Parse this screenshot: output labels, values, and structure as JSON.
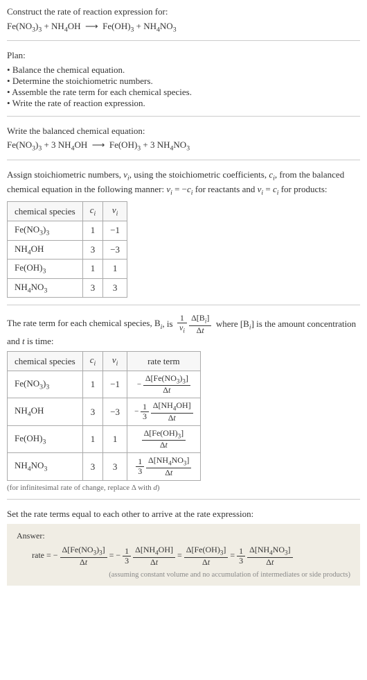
{
  "prompt": {
    "lead": "Construct the rate of reaction expression for:",
    "equation_html": "Fe(NO<sub>3</sub>)<sub>3</sub> + NH<sub>4</sub>OH &nbsp;⟶&nbsp; Fe(OH)<sub>3</sub> + NH<sub>4</sub>NO<sub>3</sub>"
  },
  "plan": {
    "heading": "Plan:",
    "items": [
      "Balance the chemical equation.",
      "Determine the stoichiometric numbers.",
      "Assemble the rate term for each chemical species.",
      "Write the rate of reaction expression."
    ]
  },
  "balanced": {
    "heading": "Write the balanced chemical equation:",
    "equation_html": "Fe(NO<sub>3</sub>)<sub>3</sub> + 3 NH<sub>4</sub>OH &nbsp;⟶&nbsp; Fe(OH)<sub>3</sub> + 3 NH<sub>4</sub>NO<sub>3</sub>"
  },
  "stoich": {
    "para_html": "Assign stoichiometric numbers, <span class='ital'>ν<sub>i</sub></span>, using the stoichiometric coefficients, <span class='ital'>c<sub>i</sub></span>, from the balanced chemical equation in the following manner: <span class='ital'>ν<sub>i</sub></span> = −<span class='ital'>c<sub>i</sub></span> for reactants and <span class='ital'>ν<sub>i</sub></span> = <span class='ital'>c<sub>i</sub></span> for products:",
    "columns": [
      "chemical species",
      "c_i",
      "ν_i"
    ],
    "col_headers_html": [
      "chemical species",
      "<span class='ital'>c<sub>i</sub></span>",
      "<span class='ital'>ν<sub>i</sub></span>"
    ],
    "rows": [
      {
        "species_html": "Fe(NO<sub>3</sub>)<sub>3</sub>",
        "c": "1",
        "nu": "−1"
      },
      {
        "species_html": "NH<sub>4</sub>OH",
        "c": "3",
        "nu": "−3"
      },
      {
        "species_html": "Fe(OH)<sub>3</sub>",
        "c": "1",
        "nu": "1"
      },
      {
        "species_html": "NH<sub>4</sub>NO<sub>3</sub>",
        "c": "3",
        "nu": "3"
      }
    ]
  },
  "rateterm": {
    "para_pre": "The rate term for each chemical species, B",
    "para_post_html": ", is&nbsp; <span class='frac'><span class='num'>1</span><span class='den ital'>ν<sub>i</sub></span></span> <span class='frac'><span class='num'>Δ[B<sub><span class=\"ital\">i</span></sub>]</span><span class='den'>Δ<span class=\"ital\">t</span></span></span> &nbsp;where [B<sub><span class='ital'>i</span></sub>] is the amount concentration and <span class='ital'>t</span> is time:",
    "columns": [
      "chemical species",
      "c_i",
      "ν_i",
      "rate term"
    ],
    "col_headers_html": [
      "chemical species",
      "<span class='ital'>c<sub>i</sub></span>",
      "<span class='ital'>ν<sub>i</sub></span>",
      "rate term"
    ],
    "rows": [
      {
        "species_html": "Fe(NO<sub>3</sub>)<sub>3</sub>",
        "c": "1",
        "nu": "−1",
        "rate_html": "− <span class='frac'><span class='num'>Δ[Fe(NO<sub>3</sub>)<sub>3</sub>]</span><span class='den'>Δ<span class=\"ital\">t</span></span></span>"
      },
      {
        "species_html": "NH<sub>4</sub>OH",
        "c": "3",
        "nu": "−3",
        "rate_html": "− <span class='frac'><span class='num'>1</span><span class='den'>3</span></span> <span class='frac'><span class='num'>Δ[NH<sub>4</sub>OH]</span><span class='den'>Δ<span class=\"ital\">t</span></span></span>"
      },
      {
        "species_html": "Fe(OH)<sub>3</sub>",
        "c": "1",
        "nu": "1",
        "rate_html": "<span class='frac'><span class='num'>Δ[Fe(OH)<sub>3</sub>]</span><span class='den'>Δ<span class=\"ital\">t</span></span></span>"
      },
      {
        "species_html": "NH<sub>4</sub>NO<sub>3</sub>",
        "c": "3",
        "nu": "3",
        "rate_html": "<span class='frac'><span class='num'>1</span><span class='den'>3</span></span> <span class='frac'><span class='num'>Δ[NH<sub>4</sub>NO<sub>3</sub>]</span><span class='den'>Δ<span class=\"ital\">t</span></span></span>"
      }
    ],
    "note_html": "(for infinitesimal rate of change, replace Δ with <span class='ital'>d</span>)"
  },
  "final": {
    "para": "Set the rate terms equal to each other to arrive at the rate expression:",
    "answer_label": "Answer:",
    "answer_html": "rate = − <span class='frac'><span class='num'>Δ[Fe(NO<sub>3</sub>)<sub>3</sub>]</span><span class='den'>Δ<span class=\"ital\">t</span></span></span> = − <span class='frac'><span class='num'>1</span><span class='den'>3</span></span> <span class='frac'><span class='num'>Δ[NH<sub>4</sub>OH]</span><span class='den'>Δ<span class=\"ital\">t</span></span></span> = <span class='frac'><span class='num'>Δ[Fe(OH)<sub>3</sub>]</span><span class='den'>Δ<span class=\"ital\">t</span></span></span> = <span class='frac'><span class='num'>1</span><span class='den'>3</span></span> <span class='frac'><span class='num'>Δ[NH<sub>4</sub>NO<sub>3</sub>]</span><span class='den'>Δ<span class=\"ital\">t</span></span></span>",
    "answer_note": "(assuming constant volume and no accumulation of intermediates or side products)"
  },
  "colors": {
    "border": "#cccccc",
    "table_border": "#aaaaaa",
    "answer_bg": "#f0ede4",
    "text": "#333333",
    "note": "#666666"
  }
}
